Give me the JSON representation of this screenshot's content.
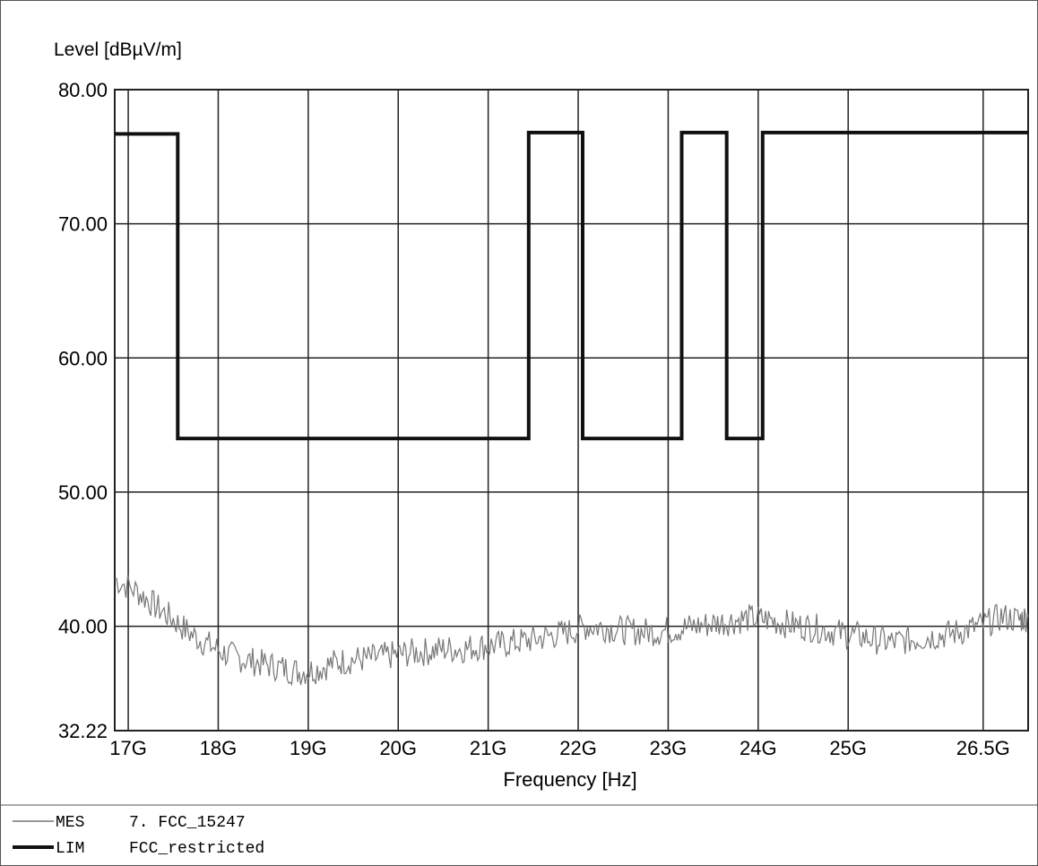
{
  "chart_data": {
    "type": "line",
    "ylabel": "Level [dBµV/m]",
    "xlabel": "Frequency [Hz]",
    "y_ticks": [
      32.22,
      40.0,
      50.0,
      60.0,
      70.0,
      80.0
    ],
    "y_tick_labels": [
      "32.22",
      "40.00",
      "50.00",
      "60.00",
      "70.00",
      "80.00"
    ],
    "x_ticks": [
      17.0,
      18.0,
      19.0,
      20.0,
      21.0,
      22.0,
      23.0,
      24.0,
      25.0,
      26.5
    ],
    "x_tick_labels": [
      "17G",
      "18G",
      "19G",
      "20G",
      "21G",
      "22G",
      "23G",
      "24G",
      "25G",
      "26.5G"
    ],
    "ylim": [
      32.22,
      80.0
    ],
    "xlim": [
      16.85,
      27.0
    ],
    "grid": true,
    "series": [
      {
        "name": "FCC_15247",
        "legend_key": "MES",
        "legend_label": "7. FCC_15247",
        "color": "#777777",
        "x": [
          16.85,
          17.1,
          17.3,
          17.5,
          17.7,
          17.9,
          18.1,
          18.3,
          18.5,
          18.7,
          18.9,
          19.1,
          19.3,
          19.5,
          19.7,
          19.9,
          20.1,
          20.3,
          20.5,
          20.7,
          20.9,
          21.1,
          21.3,
          21.5,
          21.7,
          21.9,
          22.1,
          22.3,
          22.5,
          22.7,
          22.9,
          23.1,
          23.3,
          23.5,
          23.7,
          23.9,
          24.1,
          24.3,
          24.5,
          24.7,
          24.9,
          25.1,
          25.3,
          25.5,
          25.7,
          25.9,
          26.1,
          26.3,
          26.5,
          26.7,
          26.9,
          27.0
        ],
        "y": [
          43.5,
          42.6,
          41.5,
          40.5,
          39.4,
          38.6,
          37.9,
          37.5,
          37.2,
          36.9,
          36.6,
          36.8,
          37.3,
          37.5,
          37.6,
          37.8,
          38.0,
          38.1,
          38.3,
          38.3,
          38.5,
          38.6,
          38.8,
          39.0,
          39.3,
          39.6,
          40.0,
          39.9,
          39.7,
          39.6,
          39.6,
          39.8,
          40.0,
          40.2,
          40.4,
          40.6,
          40.5,
          40.2,
          40.0,
          39.8,
          39.5,
          39.3,
          39.0,
          38.8,
          39.0,
          39.2,
          39.4,
          39.7,
          40.1,
          40.7,
          40.5,
          40.7
        ]
      },
      {
        "name": "FCC_restricted",
        "legend_key": "LIM",
        "legend_label": "FCC_restricted",
        "color": "#111111",
        "x": [
          16.85,
          17.55,
          17.55,
          21.45,
          21.45,
          22.05,
          22.05,
          23.15,
          23.15,
          23.65,
          23.65,
          24.05,
          24.05,
          27.0
        ],
        "y": [
          76.7,
          76.7,
          54.0,
          54.0,
          76.8,
          76.8,
          54.0,
          54.0,
          76.8,
          76.8,
          54.0,
          54.0,
          76.8,
          76.8
        ]
      }
    ]
  }
}
